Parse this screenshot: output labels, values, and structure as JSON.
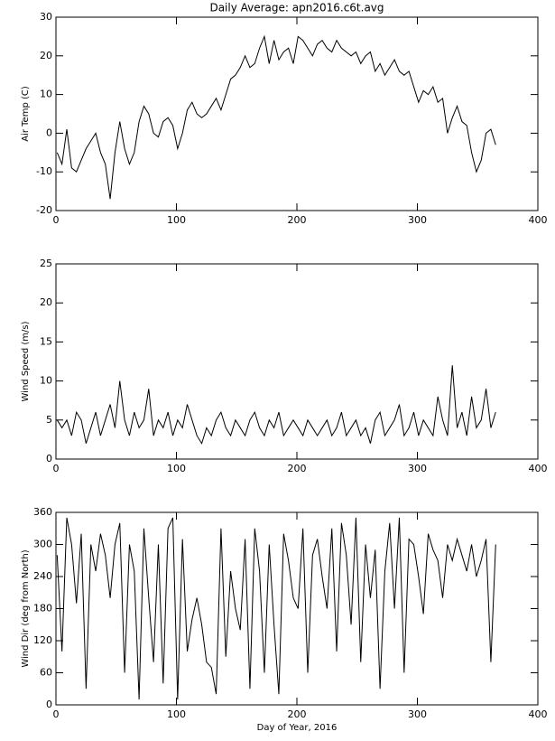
{
  "chart_data": [
    {
      "type": "line",
      "title": "Daily Average: apn2016.c6t.avg",
      "ylabel": "Air Temp (C)",
      "color": "#000000",
      "x": [
        1,
        5,
        9,
        13,
        17,
        21,
        25,
        29,
        33,
        37,
        41,
        45,
        49,
        53,
        57,
        61,
        65,
        69,
        73,
        77,
        81,
        85,
        89,
        93,
        97,
        101,
        105,
        109,
        113,
        117,
        121,
        125,
        129,
        133,
        137,
        141,
        145,
        149,
        153,
        157,
        161,
        165,
        169,
        173,
        177,
        181,
        185,
        189,
        193,
        197,
        201,
        205,
        209,
        213,
        217,
        221,
        225,
        229,
        233,
        237,
        241,
        245,
        249,
        253,
        257,
        261,
        265,
        269,
        273,
        277,
        281,
        285,
        289,
        293,
        297,
        301,
        305,
        309,
        313,
        317,
        321,
        325,
        329,
        333,
        337,
        341,
        345,
        349,
        353,
        357,
        361,
        365
      ],
      "values": [
        -5,
        -8,
        1,
        -9,
        -10,
        -7,
        -4,
        -2,
        0,
        -5,
        -8,
        -17,
        -5,
        3,
        -4,
        -8,
        -5,
        3,
        7,
        5,
        0,
        -1,
        3,
        4,
        2,
        -4,
        0,
        6,
        8,
        5,
        4,
        5,
        7,
        9,
        6,
        10,
        14,
        15,
        17,
        20,
        17,
        18,
        22,
        25,
        18,
        24,
        19,
        21,
        22,
        18,
        25,
        24,
        22,
        20,
        23,
        24,
        22,
        21,
        24,
        22,
        21,
        20,
        21,
        18,
        20,
        21,
        16,
        18,
        15,
        17,
        19,
        16,
        15,
        16,
        12,
        8,
        11,
        10,
        12,
        8,
        9,
        0,
        4,
        7,
        3,
        2,
        -5,
        -10,
        -7,
        0,
        1,
        -3
      ],
      "xlim": [
        0,
        400
      ],
      "xticks": [
        0,
        100,
        200,
        300,
        400
      ],
      "ylim": [
        -20,
        30
      ],
      "yticks": [
        -20,
        -10,
        0,
        10,
        20,
        30
      ]
    },
    {
      "type": "line",
      "ylabel": "Wind Speed (m/s)",
      "color": "#000000",
      "x": [
        1,
        5,
        9,
        13,
        17,
        21,
        25,
        29,
        33,
        37,
        41,
        45,
        49,
        53,
        57,
        61,
        65,
        69,
        73,
        77,
        81,
        85,
        89,
        93,
        97,
        101,
        105,
        109,
        113,
        117,
        121,
        125,
        129,
        133,
        137,
        141,
        145,
        149,
        153,
        157,
        161,
        165,
        169,
        173,
        177,
        181,
        185,
        189,
        193,
        197,
        201,
        205,
        209,
        213,
        217,
        221,
        225,
        229,
        233,
        237,
        241,
        245,
        249,
        253,
        257,
        261,
        265,
        269,
        273,
        277,
        281,
        285,
        289,
        293,
        297,
        301,
        305,
        309,
        313,
        317,
        321,
        325,
        329,
        333,
        337,
        341,
        345,
        349,
        353,
        357,
        361,
        365
      ],
      "values": [
        5,
        4,
        5,
        3,
        6,
        5,
        2,
        4,
        6,
        3,
        5,
        7,
        4,
        10,
        5,
        3,
        6,
        4,
        5,
        9,
        3,
        5,
        4,
        6,
        3,
        5,
        4,
        7,
        5,
        3,
        2,
        4,
        3,
        5,
        6,
        4,
        3,
        5,
        4,
        3,
        5,
        6,
        4,
        3,
        5,
        4,
        6,
        3,
        4,
        5,
        4,
        3,
        5,
        4,
        3,
        4,
        5,
        3,
        4,
        6,
        3,
        4,
        5,
        3,
        4,
        2,
        5,
        6,
        3,
        4,
        5,
        7,
        3,
        4,
        6,
        3,
        5,
        4,
        3,
        8,
        5,
        3,
        12,
        4,
        6,
        3,
        8,
        4,
        5,
        9,
        4,
        6
      ],
      "xlim": [
        0,
        400
      ],
      "xticks": [
        0,
        100,
        200,
        300,
        400
      ],
      "ylim": [
        0,
        25
      ],
      "yticks": [
        0,
        5,
        10,
        15,
        20,
        25
      ]
    },
    {
      "type": "line",
      "ylabel": "Wind Dir (deg from North)",
      "xlabel": "Day of Year, 2016",
      "color": "#000000",
      "x": [
        1,
        5,
        9,
        13,
        17,
        21,
        25,
        29,
        33,
        37,
        41,
        45,
        49,
        53,
        57,
        61,
        65,
        69,
        73,
        77,
        81,
        85,
        89,
        93,
        97,
        101,
        105,
        109,
        113,
        117,
        121,
        125,
        129,
        133,
        137,
        141,
        145,
        149,
        153,
        157,
        161,
        165,
        169,
        173,
        177,
        181,
        185,
        189,
        193,
        197,
        201,
        205,
        209,
        213,
        217,
        221,
        225,
        229,
        233,
        237,
        241,
        245,
        249,
        253,
        257,
        261,
        265,
        269,
        273,
        277,
        281,
        285,
        289,
        293,
        297,
        301,
        305,
        309,
        313,
        317,
        321,
        325,
        329,
        333,
        337,
        341,
        345,
        349,
        353,
        357,
        361,
        365
      ],
      "values": [
        280,
        100,
        350,
        300,
        190,
        320,
        30,
        300,
        250,
        320,
        280,
        200,
        300,
        340,
        60,
        300,
        250,
        10,
        330,
        200,
        80,
        300,
        40,
        330,
        350,
        10,
        310,
        100,
        160,
        200,
        150,
        80,
        70,
        20,
        330,
        90,
        250,
        180,
        140,
        310,
        30,
        330,
        250,
        60,
        300,
        150,
        20,
        320,
        270,
        200,
        180,
        330,
        60,
        280,
        310,
        240,
        180,
        330,
        100,
        340,
        280,
        150,
        350,
        80,
        300,
        200,
        290,
        30,
        250,
        340,
        180,
        350,
        60,
        310,
        300,
        240,
        170,
        320,
        290,
        270,
        200,
        300,
        270,
        310,
        280,
        250,
        300,
        240,
        270,
        310,
        80,
        300
      ],
      "xlim": [
        0,
        400
      ],
      "xticks": [
        0,
        100,
        200,
        300,
        400
      ],
      "ylim": [
        0,
        360
      ],
      "yticks": [
        0,
        60,
        120,
        180,
        240,
        300,
        360
      ]
    }
  ]
}
